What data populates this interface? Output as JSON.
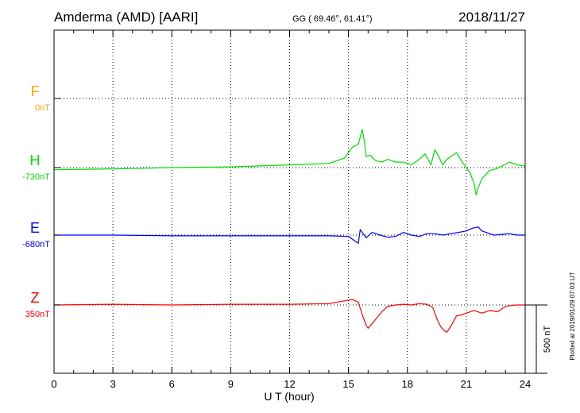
{
  "chart_data": {
    "type": "line",
    "title": "Amderma (AMD)  [AARI]",
    "subtitle": "GG ( 69.46°,  61.41°)",
    "date": "2018/11/27",
    "xlabel": "U T (hour)",
    "xlim": [
      0,
      24
    ],
    "x_ticks": [
      "0",
      "3",
      "6",
      "9",
      "12",
      "15",
      "18",
      "21",
      "24"
    ],
    "grid": true,
    "scale_bar_label": "500 nT",
    "scale_bar_nT": 500,
    "plotted_note": "Plotted at 2019/01/29 07:03 UT",
    "series": [
      {
        "name": "F",
        "baseline_label": "0nT",
        "color": "#ffa500",
        "x": [],
        "y": []
      },
      {
        "name": "H",
        "baseline_label": "-730nT",
        "color": "#00e000",
        "x": [
          0,
          3,
          6,
          9,
          12,
          14,
          14.8,
          15.2,
          15.5,
          15.7,
          15.8,
          15.9,
          16.1,
          16.4,
          16.7,
          17.0,
          17.4,
          17.8,
          18.2,
          18.6,
          18.9,
          19.2,
          19.4,
          19.6,
          19.8,
          20.0,
          20.2,
          20.5,
          20.8,
          21.0,
          21.2,
          21.4,
          21.5,
          21.6,
          21.8,
          22.0,
          22.2,
          22.5,
          22.8,
          23.2,
          23.6,
          24
        ],
        "y": [
          -15,
          -10,
          0,
          5,
          20,
          30,
          70,
          150,
          170,
          280,
          200,
          80,
          90,
          50,
          40,
          60,
          40,
          40,
          20,
          60,
          100,
          20,
          130,
          80,
          20,
          60,
          80,
          110,
          40,
          0,
          -40,
          -120,
          -200,
          -150,
          -80,
          -50,
          -20,
          -10,
          10,
          40,
          20,
          10
        ]
      },
      {
        "name": "E",
        "baseline_label": "-680nT",
        "color": "#0000ff",
        "x": [
          0,
          3,
          6,
          9,
          12,
          14,
          15.0,
          15.3,
          15.5,
          15.6,
          15.7,
          15.9,
          16.2,
          16.6,
          17.0,
          17.4,
          17.8,
          18.2,
          18.6,
          19.0,
          19.4,
          19.8,
          20.2,
          20.6,
          21.0,
          21.3,
          21.6,
          21.8,
          22.0,
          22.4,
          22.8,
          23.2,
          23.6,
          24
        ],
        "y": [
          0,
          0,
          -5,
          -5,
          -5,
          -5,
          -10,
          -40,
          -60,
          40,
          20,
          -20,
          20,
          0,
          -15,
          -10,
          20,
          0,
          -10,
          10,
          10,
          0,
          10,
          20,
          30,
          50,
          60,
          30,
          20,
          0,
          5,
          10,
          0,
          0
        ]
      },
      {
        "name": "Z",
        "baseline_label": "350nT",
        "color": "#ff0000",
        "x": [
          0,
          3,
          6,
          9,
          12,
          14,
          14.8,
          15.2,
          15.5,
          15.7,
          15.9,
          16.0,
          16.3,
          16.7,
          17.0,
          17.4,
          17.8,
          18.2,
          18.6,
          19.0,
          19.3,
          19.5,
          19.7,
          19.9,
          20.0,
          20.2,
          20.5,
          20.8,
          21.0,
          21.4,
          21.8,
          22.2,
          22.6,
          23.0,
          23.5,
          24
        ],
        "y": [
          0,
          5,
          0,
          5,
          5,
          10,
          30,
          40,
          20,
          -70,
          -150,
          -170,
          -120,
          -50,
          -10,
          0,
          5,
          0,
          10,
          5,
          -20,
          -100,
          -160,
          -190,
          -200,
          -160,
          -80,
          -70,
          -60,
          -40,
          -60,
          -40,
          -50,
          -10,
          0,
          0
        ]
      }
    ]
  }
}
